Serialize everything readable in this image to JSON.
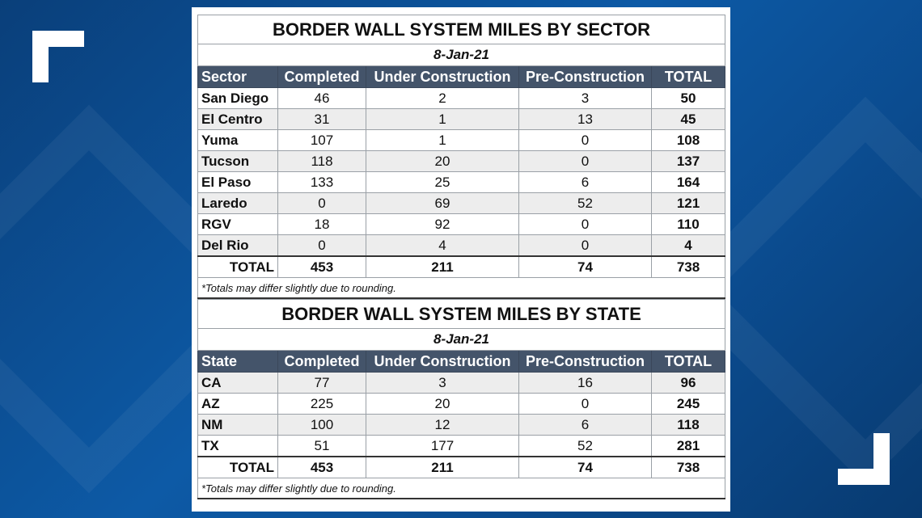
{
  "colors": {
    "header_bg": "#44546a",
    "alt_row": "#ededed",
    "background": "#0d5aa6"
  },
  "sector_table": {
    "title": "BORDER WALL SYSTEM MILES BY SECTOR",
    "date": "8-Jan-21",
    "headers": [
      "Sector",
      "Completed",
      "Under Construction",
      "Pre-Construction",
      "TOTAL"
    ],
    "rows": [
      [
        "San Diego",
        "46",
        "2",
        "3",
        "50"
      ],
      [
        "El Centro",
        "31",
        "1",
        "13",
        "45"
      ],
      [
        "Yuma",
        "107",
        "1",
        "0",
        "108"
      ],
      [
        "Tucson",
        "118",
        "20",
        "0",
        "137"
      ],
      [
        "El Paso",
        "133",
        "25",
        "6",
        "164"
      ],
      [
        "Laredo",
        "0",
        "69",
        "52",
        "121"
      ],
      [
        "RGV",
        "18",
        "92",
        "0",
        "110"
      ],
      [
        "Del Rio",
        "0",
        "4",
        "0",
        "4"
      ]
    ],
    "total": [
      "TOTAL",
      "453",
      "211",
      "74",
      "738"
    ],
    "note": "*Totals may differ slightly due to rounding."
  },
  "state_table": {
    "title": "BORDER WALL SYSTEM MILES BY STATE",
    "date": "8-Jan-21",
    "headers": [
      "State",
      "Completed",
      "Under Construction",
      "Pre-Construction",
      "TOTAL"
    ],
    "rows": [
      [
        "CA",
        "77",
        "3",
        "16",
        "96"
      ],
      [
        "AZ",
        "225",
        "20",
        "0",
        "245"
      ],
      [
        "NM",
        "100",
        "12",
        "6",
        "118"
      ],
      [
        "TX",
        "51",
        "177",
        "52",
        "281"
      ]
    ],
    "total": [
      "TOTAL",
      "453",
      "211",
      "74",
      "738"
    ],
    "note": "*Totals may differ slightly due to rounding."
  }
}
